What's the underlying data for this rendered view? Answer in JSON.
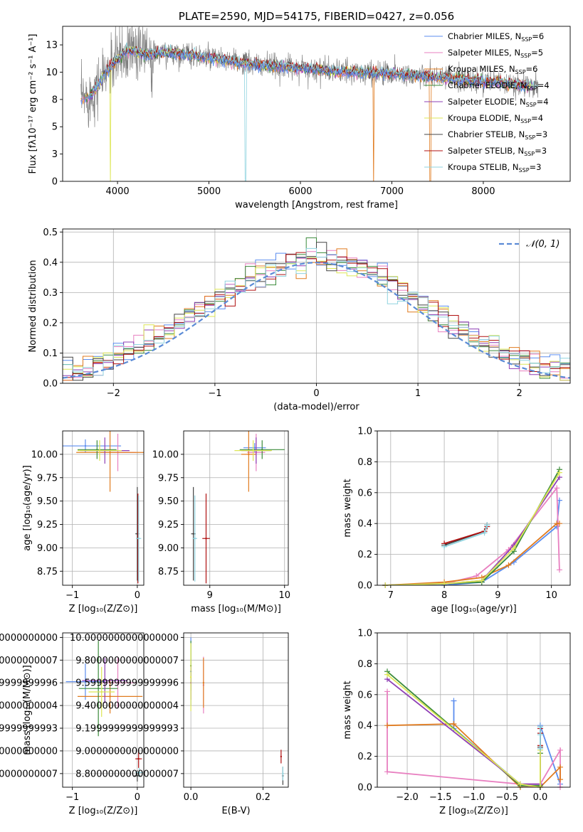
{
  "colors": {
    "series": [
      "#5b8def",
      "#e87fc0",
      "#e07b1f",
      "#3b8b3b",
      "#8e3fb5",
      "#dde655",
      "#444444",
      "#b01010",
      "#8fd3df"
    ],
    "grid": "#b0b0b0",
    "normal_curve": "#5b8bd6",
    "raw_spectrum": "#808080"
  },
  "chart_data": [
    {
      "id": "spectrum",
      "type": "line",
      "title": "PLATE=2590, MJD=54175, FIBERID=0427, z=0.056",
      "xlabel": "wavelength [Angstrom, rest frame]",
      "ylabel": "Flux [fλ10⁻¹⁷ erg cm⁻² s⁻¹ A⁻¹]",
      "xlim": [
        3400,
        8950
      ],
      "ylim": [
        0,
        14.2
      ],
      "xticks": [
        4000,
        5000,
        6000,
        7000,
        8000
      ],
      "yticks": [
        0.0,
        2.5,
        5.0,
        7.5,
        10.0,
        12.5
      ],
      "legend_position": "upper right",
      "legend": [
        "Chabrier MILES, N_SSP=6",
        "Salpeter MILES, N_SSP=5",
        "Kroupa MILES, N_SSP=6",
        "Chabrier ELODIE, N_SSP=4",
        "Salpeter ELODIE, N_SSP=4",
        "Kroupa ELODIE, N_SSP=4",
        "Chabrier STELIB, N_SSP=3",
        "Salpeter STELIB, N_SSP=3",
        "Kroupa STELIB, N_SSP=3"
      ],
      "model_anchor": {
        "wavelength": [
          3600,
          3700,
          3800,
          3900,
          4000,
          4100,
          4200,
          4300,
          4500,
          4700,
          5000,
          5300,
          5600,
          6000,
          6500,
          7000,
          7400,
          7800,
          8200,
          8600
        ],
        "flux": [
          7.5,
          7.8,
          9.0,
          10.3,
          11.2,
          12.0,
          11.9,
          11.6,
          11.8,
          11.7,
          11.3,
          10.9,
          10.6,
          10.4,
          10.0,
          9.9,
          9.6,
          9.3,
          9.0,
          8.6
        ]
      }
    },
    {
      "id": "residuals",
      "type": "line",
      "title": "",
      "xlabel": "(data-model)/error",
      "ylabel": "Normed distribution",
      "xlim": [
        -2.5,
        2.5
      ],
      "ylim": [
        0,
        0.51
      ],
      "xticks": [
        -2,
        -1,
        0,
        1,
        2
      ],
      "yticks": [
        0.0,
        0.1,
        0.2,
        0.3,
        0.4,
        0.5
      ],
      "grid": true,
      "legend_position": "upper right",
      "legend": [
        "𝒩(0, 1)"
      ],
      "bin_width": 0.1,
      "curve": "normal pdf, mean 0, sigma 1"
    },
    {
      "id": "age_vs_Z",
      "type": "scatter",
      "xlabel": "Z [log₁₀(Z/Z⊙)]",
      "ylabel": "age  [log₁₀(age/yr)]",
      "xlim": [
        -1.15,
        0.1
      ],
      "ylim": [
        8.6,
        10.25
      ],
      "xticks": [
        -1,
        0
      ],
      "yticks": [
        8.75,
        9.0,
        9.25,
        9.5,
        9.75,
        10.0
      ],
      "grid": true,
      "points": [
        {
          "x": -0.8,
          "y": 10.09,
          "xerr": 0.55,
          "yerr": 0.07
        },
        {
          "x": -0.3,
          "y": 10.02,
          "xerr": 0.28,
          "yerr": 0.2
        },
        {
          "x": -0.42,
          "y": 10.02,
          "xerr": 0.52,
          "yerr": 0.42
        },
        {
          "x": -0.62,
          "y": 10.05,
          "xerr": 0.3,
          "yerr": 0.1
        },
        {
          "x": -0.5,
          "y": 10.04,
          "xerr": 0.38,
          "yerr": 0.14
        },
        {
          "x": -0.58,
          "y": 10.04,
          "xerr": 0.34,
          "yerr": 0.11
        },
        {
          "x": 0.0,
          "y": 9.15,
          "xerr": 0.03,
          "yerr": 0.5
        },
        {
          "x": 0.01,
          "y": 9.1,
          "xerr": 0.02,
          "yerr": 0.48
        },
        {
          "x": 0.02,
          "y": 9.1,
          "xerr": 0.04,
          "yerr": 0.46
        }
      ]
    },
    {
      "id": "age_vs_mass",
      "type": "scatter",
      "xlabel": "mass [log₁₀(M/M⊙)]",
      "ylabel": "",
      "xlim": [
        8.65,
        10.05
      ],
      "ylim": [
        8.6,
        10.25
      ],
      "xticks": [
        9,
        10
      ],
      "yticks": [
        8.75,
        9.0,
        9.25,
        9.5,
        9.75,
        10.0
      ],
      "grid": true,
      "points": [
        {
          "x": 9.6,
          "y": 10.07,
          "xerr": 0.15,
          "yerr": 0.05
        },
        {
          "x": 9.62,
          "y": 10.02,
          "xerr": 0.12,
          "yerr": 0.2
        },
        {
          "x": 9.52,
          "y": 10.0,
          "xerr": 0.1,
          "yerr": 0.4
        },
        {
          "x": 9.7,
          "y": 10.05,
          "xerr": 0.3,
          "yerr": 0.1
        },
        {
          "x": 9.62,
          "y": 10.04,
          "xerr": 0.2,
          "yerr": 0.14
        },
        {
          "x": 9.58,
          "y": 10.04,
          "xerr": 0.25,
          "yerr": 0.11
        },
        {
          "x": 8.78,
          "y": 9.15,
          "xerr": 0.03,
          "yerr": 0.5
        },
        {
          "x": 8.95,
          "y": 9.1,
          "xerr": 0.05,
          "yerr": 0.48
        },
        {
          "x": 8.8,
          "y": 9.1,
          "xerr": 0.03,
          "yerr": 0.46
        }
      ]
    },
    {
      "id": "mass_weight_vs_age",
      "type": "line",
      "xlabel": "age  [log₁₀(age/yr)]",
      "ylabel": "mass weight",
      "xlim": [
        6.75,
        10.35
      ],
      "ylim": [
        0,
        1.0
      ],
      "xticks": [
        7,
        8,
        9,
        10
      ],
      "yticks": [
        0.0,
        0.2,
        0.4,
        0.6,
        0.8,
        1.0
      ],
      "grid": true,
      "series": [
        {
          "x": [
            6.9,
            8.0,
            8.7,
            9.3,
            10.1,
            10.15
          ],
          "y": [
            0.0,
            0.0,
            0.02,
            0.15,
            0.38,
            0.55
          ]
        },
        {
          "x": [
            6.9,
            8.0,
            8.6,
            9.2,
            10.1,
            10.15
          ],
          "y": [
            0.0,
            0.01,
            0.06,
            0.23,
            0.63,
            0.1
          ]
        },
        {
          "x": [
            6.9,
            8.0,
            8.7,
            9.2,
            10.1,
            10.15
          ],
          "y": [
            0.0,
            0.02,
            0.05,
            0.13,
            0.4,
            0.4
          ]
        },
        {
          "x": [
            6.9,
            8.0,
            8.7,
            9.3,
            10.15
          ],
          "y": [
            0.0,
            0.01,
            0.02,
            0.22,
            0.75
          ]
        },
        {
          "x": [
            6.9,
            8.0,
            8.7,
            9.3,
            10.15
          ],
          "y": [
            0.0,
            0.01,
            0.03,
            0.26,
            0.7
          ]
        },
        {
          "x": [
            6.9,
            8.0,
            8.7,
            9.3,
            10.15
          ],
          "y": [
            0.0,
            0.01,
            0.03,
            0.24,
            0.73
          ]
        },
        {
          "x": [
            8.0,
            8.75,
            8.8
          ],
          "y": [
            0.26,
            0.35,
            0.39
          ]
        },
        {
          "x": [
            8.0,
            8.75,
            8.8
          ],
          "y": [
            0.27,
            0.35,
            0.38
          ]
        },
        {
          "x": [
            8.0,
            8.75,
            8.8
          ],
          "y": [
            0.25,
            0.34,
            0.39
          ]
        }
      ]
    },
    {
      "id": "mass_vs_Z",
      "type": "scatter",
      "xlabel": "Z [log₁₀(Z/Z⊙)]",
      "ylabel": "mass [log₁₀(M/M⊙)]",
      "xlim": [
        -1.15,
        0.1
      ],
      "ylim": [
        8.68,
        10.04
      ],
      "xticks": [
        -1,
        0
      ],
      "yticks": [
        8.8,
        9.0,
        9.2,
        9.4,
        9.6,
        9.8,
        10.0
      ],
      "grid": true,
      "points": [
        {
          "x": -0.8,
          "y": 9.61,
          "xerr": 0.3,
          "yerr": 0.16
        },
        {
          "x": -0.3,
          "y": 9.6,
          "xerr": 0.28,
          "yerr": 0.22
        },
        {
          "x": -0.42,
          "y": 9.48,
          "xerr": 0.5,
          "yerr": 0.15
        },
        {
          "x": -0.6,
          "y": 9.55,
          "xerr": 0.3,
          "yerr": 0.42
        },
        {
          "x": -0.5,
          "y": 9.62,
          "xerr": 0.35,
          "yerr": 0.2
        },
        {
          "x": -0.55,
          "y": 9.52,
          "xerr": 0.2,
          "yerr": 0.22
        },
        {
          "x": 0.0,
          "y": 8.78,
          "xerr": 0.05,
          "yerr": 0.05
        },
        {
          "x": 0.02,
          "y": 8.93,
          "xerr": 0.05,
          "yerr": 0.08
        },
        {
          "x": 0.03,
          "y": 8.81,
          "xerr": 0.06,
          "yerr": 0.04
        }
      ]
    },
    {
      "id": "mass_vs_ebv",
      "type": "scatter",
      "xlabel": "E(B-V)",
      "ylabel": "",
      "xlim": [
        -0.02,
        0.27
      ],
      "ylim": [
        8.68,
        10.04
      ],
      "xticks": [
        0.0,
        0.2
      ],
      "yticks": [
        8.8,
        9.0,
        9.2,
        9.4,
        9.6,
        9.8,
        10.0
      ],
      "grid": true,
      "points": [
        {
          "x": 0.0,
          "y": 9.7,
          "xerr": 0,
          "yerr": 0.3
        },
        {
          "x": 0.035,
          "y": 9.58,
          "xerr": 0,
          "yerr": 0.25
        },
        {
          "x": 0.035,
          "y": 9.6,
          "xerr": 0,
          "yerr": 0.22
        },
        {
          "x": 0.0,
          "y": 9.75,
          "xerr": 0,
          "yerr": 0.22
        },
        {
          "x": 0.0,
          "y": 9.6,
          "xerr": 0,
          "yerr": 0.15
        },
        {
          "x": 0.0,
          "y": 9.65,
          "xerr": 0,
          "yerr": 0.3
        },
        {
          "x": 0.255,
          "y": 8.78,
          "xerr": 0,
          "yerr": 0.08
        },
        {
          "x": 0.25,
          "y": 8.95,
          "xerr": 0,
          "yerr": 0.06
        },
        {
          "x": 0.255,
          "y": 8.8,
          "xerr": 0,
          "yerr": 0.06
        }
      ]
    },
    {
      "id": "mass_weight_vs_Z",
      "type": "line",
      "xlabel": "Z [log₁₀(Z/Z⊙)]",
      "ylabel": "mass weight",
      "xlim": [
        -2.45,
        0.45
      ],
      "ylim": [
        0,
        1.0
      ],
      "xticks": [
        -2.0,
        -1.5,
        -1.0,
        -0.5,
        0.0
      ],
      "yticks": [
        0.0,
        0.2,
        0.4,
        0.6,
        0.8,
        1.0
      ],
      "grid": true,
      "series": [
        {
          "x": [
            -1.3,
            -1.3,
            -0.3,
            0.0,
            0.0,
            0.3
          ],
          "y": [
            0.56,
            0.38,
            0.02,
            0.0,
            0.4,
            0.02
          ]
        },
        {
          "x": [
            -2.3,
            -2.3,
            -0.3,
            0.0,
            0.3,
            0.3
          ],
          "y": [
            0.62,
            0.1,
            0.02,
            0.02,
            0.24,
            0.0
          ]
        },
        {
          "x": [
            -2.3,
            -1.3,
            -0.3,
            0.0,
            0.3,
            0.3
          ],
          "y": [
            0.4,
            0.41,
            0.0,
            0.0,
            0.13,
            0.05
          ]
        },
        {
          "x": [
            -2.3,
            -0.3,
            0.0,
            0.0
          ],
          "y": [
            0.75,
            0.01,
            0.01,
            0.22
          ]
        },
        {
          "x": [
            -2.3,
            -0.3,
            0.0,
            0.0
          ],
          "y": [
            0.7,
            0.02,
            0.02,
            0.26
          ]
        },
        {
          "x": [
            -2.3,
            -0.3,
            0.0,
            0.0
          ],
          "y": [
            0.73,
            0.02,
            0.0,
            0.24
          ]
        },
        {
          "x": [
            0.0,
            0.0,
            0.0
          ],
          "y": [
            0.39,
            0.35,
            0.26
          ]
        },
        {
          "x": [
            0.0,
            0.0,
            0.0
          ],
          "y": [
            0.38,
            0.35,
            0.27
          ]
        },
        {
          "x": [
            0.0,
            0.0,
            0.0
          ],
          "y": [
            0.39,
            0.34,
            0.25
          ]
        }
      ]
    }
  ]
}
